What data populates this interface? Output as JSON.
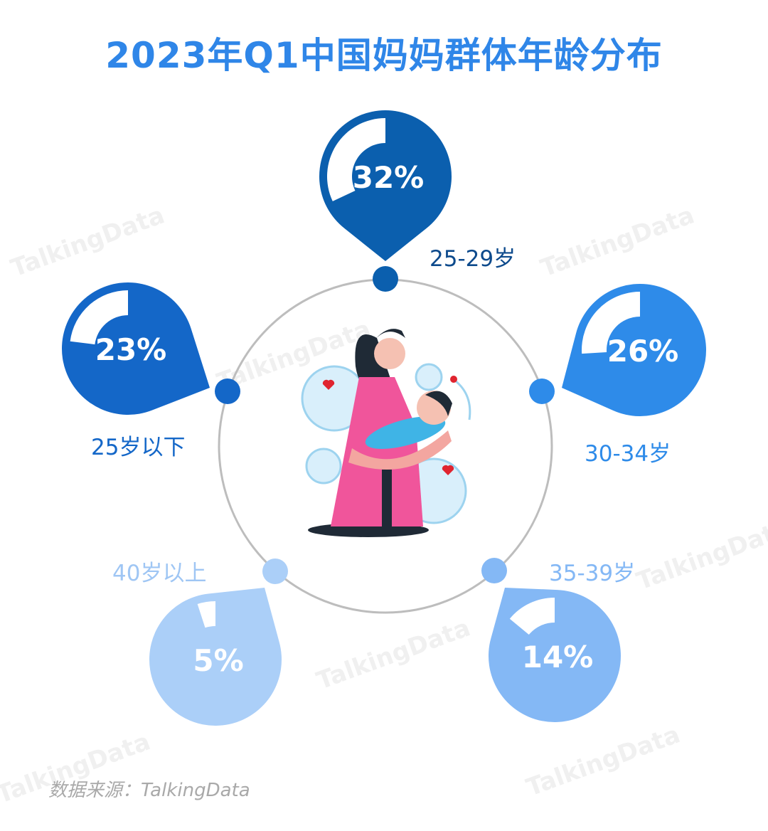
{
  "title": "2023年Q1中国妈妈群体年龄分布",
  "source": "数据来源：TalkingData",
  "watermark": "TalkingData",
  "chart_data": {
    "type": "pie",
    "title": "2023年Q1中国妈妈群体年龄分布",
    "categories": [
      "25岁以下",
      "25-29岁",
      "30-34岁",
      "35-39岁",
      "40岁以上"
    ],
    "values": [
      23,
      32,
      26,
      14,
      5
    ],
    "unit": "%",
    "labels": [
      "23%",
      "32%",
      "26%",
      "14%",
      "5%"
    ],
    "colors": [
      "#1467c8",
      "#0b5fae",
      "#2e8be9",
      "#84b8f5",
      "#abcff8"
    ],
    "label_colors": [
      "#1467c8",
      "#0d4a8c",
      "#2e8be9",
      "#84b8f5",
      "#9fc6f4"
    ]
  }
}
